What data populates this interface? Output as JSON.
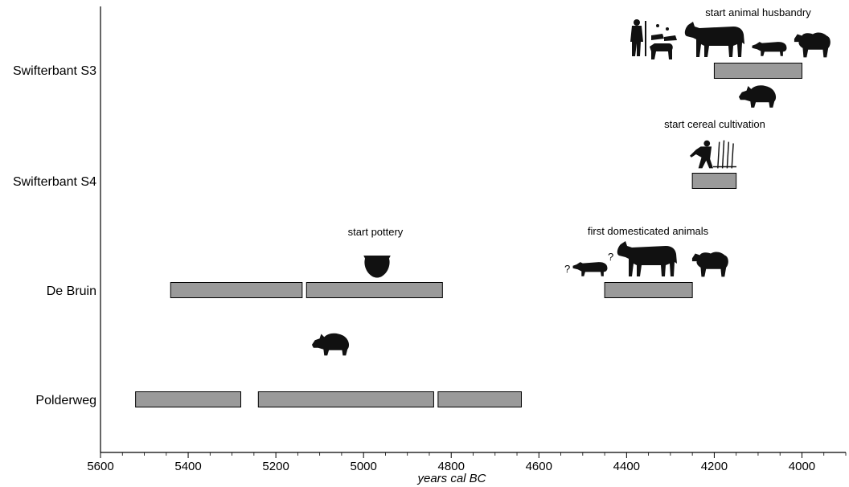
{
  "chart_data": {
    "type": "bar",
    "subtype": "timeline-range",
    "xlabel": "years cal BC",
    "xlim": [
      5600,
      3900
    ],
    "x_reversed": true,
    "xticks": [
      5600,
      5400,
      5200,
      5000,
      4800,
      4600,
      4400,
      4200,
      4000
    ],
    "grid": false,
    "categories": [
      "Swifterbant S3",
      "Swifterbant S4",
      "De Bruin",
      "Polderweg"
    ],
    "ranges": [
      {
        "site": "Swifterbant S3",
        "start": 4200,
        "end": 4000
      },
      {
        "site": "Swifterbant S4",
        "start": 4250,
        "end": 4150
      },
      {
        "site": "De Bruin",
        "start": 5440,
        "end": 5140
      },
      {
        "site": "De Bruin",
        "start": 5130,
        "end": 4820
      },
      {
        "site": "De Bruin",
        "start": 4450,
        "end": 4250
      },
      {
        "site": "Polderweg",
        "start": 5520,
        "end": 5280
      },
      {
        "site": "Polderweg",
        "start": 5240,
        "end": 4840
      },
      {
        "site": "Polderweg",
        "start": 4830,
        "end": 4640
      }
    ],
    "annotations": [
      {
        "text": "start animal husbandry",
        "x": 4100,
        "site": "Swifterbant S3"
      },
      {
        "text": "start cereal cultivation",
        "x": 4200,
        "site": "Swifterbant S4"
      },
      {
        "text": "start pottery",
        "x": 4975,
        "site": "De Bruin"
      },
      {
        "text": "first domesticated animals",
        "x": 4350,
        "site": "De Bruin"
      }
    ],
    "question_marks": [
      "?",
      "?"
    ],
    "icons": [
      "cow-icon",
      "pig-icon",
      "sheep-icon",
      "wild-boar-icon",
      "pottery-vessel-icon",
      "farmer-harvesting-icon",
      "herder-with-animals-icon"
    ]
  }
}
